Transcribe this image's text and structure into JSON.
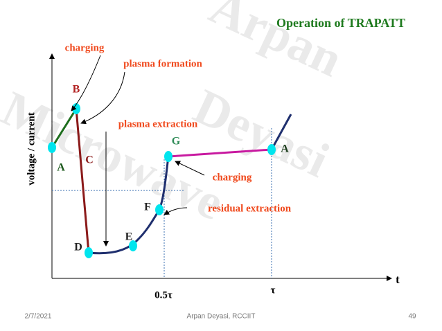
{
  "title": "Operation of TRAPATT",
  "watermark": [
    "Arpan",
    "Deyasi",
    "Microwave"
  ],
  "axes": {
    "y_label": "voltage / current",
    "x_label": "t",
    "half_period": "0.5τ",
    "period": "τ"
  },
  "annotations": [
    "charging",
    "plasma formation",
    "plasma extraction",
    "charging",
    "residual extraction"
  ],
  "points": [
    "B",
    "A",
    "C",
    "D",
    "E",
    "F",
    "G",
    "A"
  ],
  "footer": {
    "date": "2/7/2021",
    "author": "Arpan Deyasi, RCCIIT",
    "page": "49"
  }
}
